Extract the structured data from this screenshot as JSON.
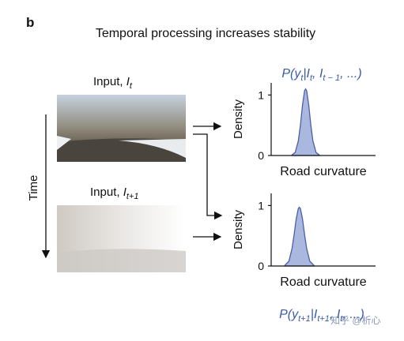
{
  "panel_label": "b",
  "title": "Temporal processing increases stability",
  "time_label": "Time",
  "inputs": [
    {
      "label": "Input,",
      "var": "I",
      "sub": "t"
    },
    {
      "label": "Input,",
      "var": "I",
      "sub": "t+1"
    }
  ],
  "watermark": "知乎 @析心",
  "chart_data": [
    {
      "type": "area",
      "ylabel": "Density",
      "xlabel": "Road curvature",
      "annotation": [
        "P(y",
        "t",
        "|I",
        "t",
        ", I",
        "t − 1",
        ", ...)"
      ],
      "x": [
        0.2,
        0.23,
        0.26,
        0.28,
        0.3,
        0.32,
        0.33,
        0.34,
        0.36,
        0.38,
        0.4,
        0.43,
        0.46
      ],
      "values": [
        0.01,
        0.05,
        0.24,
        0.5,
        0.83,
        1.07,
        1.1,
        1.07,
        0.83,
        0.5,
        0.24,
        0.05,
        0.01
      ],
      "color": "#aab8e0",
      "xlim": [
        0,
        1
      ],
      "ylim": [
        0,
        1.2
      ],
      "yticks": [
        0,
        1
      ]
    },
    {
      "type": "area",
      "ylabel": "Density",
      "xlabel": "Road curvature",
      "annotation": [
        "P(y",
        "t+1",
        "|I",
        "t+1",
        ", I",
        "t",
        ", ...)"
      ],
      "x": [
        0.13,
        0.17,
        0.2,
        0.22,
        0.24,
        0.26,
        0.27,
        0.28,
        0.3,
        0.32,
        0.34,
        0.37,
        0.41
      ],
      "values": [
        0.01,
        0.08,
        0.29,
        0.52,
        0.78,
        0.95,
        0.97,
        0.95,
        0.78,
        0.52,
        0.29,
        0.08,
        0.01
      ],
      "color": "#aab8e0",
      "xlim": [
        0,
        1
      ],
      "ylim": [
        0,
        1.2
      ],
      "yticks": [
        0,
        1
      ]
    }
  ]
}
